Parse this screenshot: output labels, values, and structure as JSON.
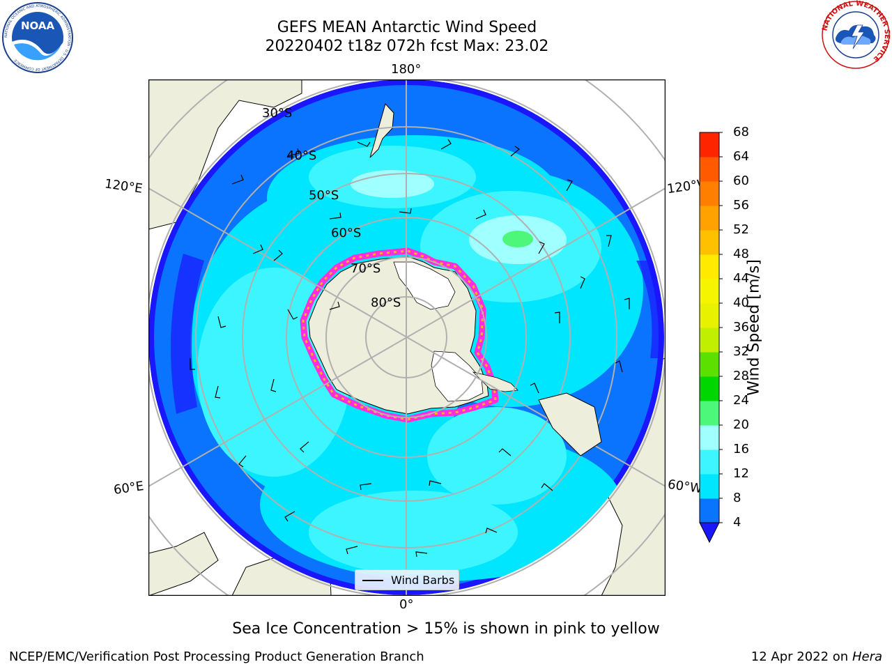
{
  "header": {
    "title_line1": "GEFS MEAN Antarctic Wind Speed",
    "title_line2": "20220402 t18z 072h fcst   Max: 23.02"
  },
  "logos": {
    "left": "NOAA",
    "left_ring_text": "NATIONAL OCEANIC AND ATMOSPHERIC ADMINISTRATION · U.S. DEPARTMENT OF COMMERCE",
    "right_ring_text": "NATIONAL WEATHER SERVICE"
  },
  "map": {
    "lon_labels": {
      "top": "180°",
      "bottom": "0°",
      "upper_left": "120°E",
      "upper_right": "120°W",
      "lower_left": "60°E",
      "lower_right": "60°W"
    },
    "lat_labels": [
      "30°S",
      "40°S",
      "50°S",
      "60°S",
      "70°S",
      "80°S"
    ],
    "legend_label": "Wind Barbs",
    "colors": {
      "land": "#eeeedc",
      "ice_edge": "#ff2ddc",
      "ice": "#ffffff",
      "grid": "#b0b0b0"
    }
  },
  "colorbar": {
    "label": "Wind Speed [m/s]",
    "ticks": [
      "4",
      "8",
      "12",
      "16",
      "20",
      "24",
      "28",
      "32",
      "36",
      "40",
      "44",
      "48",
      "52",
      "56",
      "60",
      "64",
      "68"
    ],
    "colors": [
      "#0b74ff",
      "#00e6ff",
      "#3df5ff",
      "#a0ffff",
      "#4df77a",
      "#00d600",
      "#5be000",
      "#c0f000",
      "#e8f200",
      "#f5f500",
      "#ffea00",
      "#ffc000",
      "#ffa200",
      "#ff8000",
      "#ff5a00",
      "#ff2400"
    ],
    "under_color": "#1a17ff"
  },
  "note": "Sea Ice Concentration > 15% is shown in pink to yellow",
  "footer": {
    "left": "NCEP/EMC/Verification Post Processing Product Generation Branch",
    "right_date": "12 Apr 2022 on",
    "right_host": "Hera"
  }
}
